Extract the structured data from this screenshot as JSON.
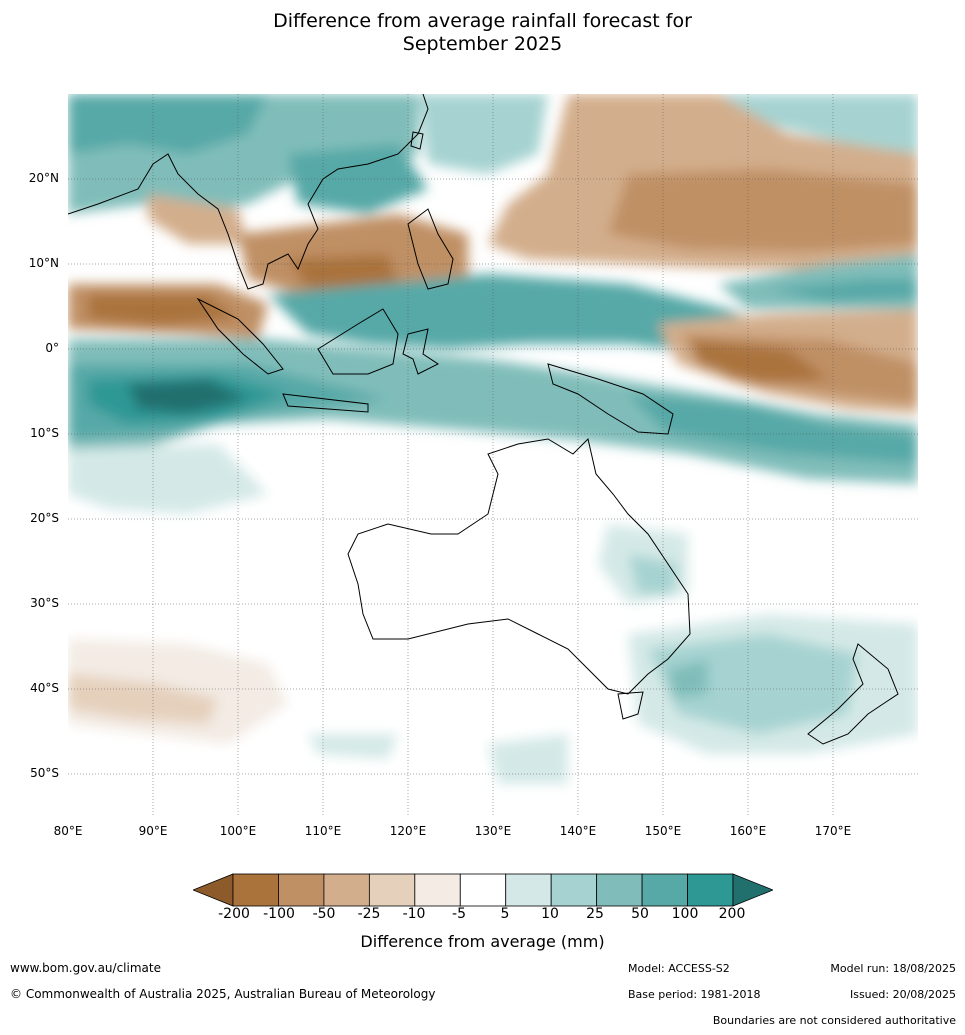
{
  "title_line1": "Difference from average rainfall forecast for",
  "title_line2": "September 2025",
  "lat_labels": [
    "20°N",
    "10°N",
    "0°",
    "10°S",
    "20°S",
    "30°S",
    "40°S",
    "50°S"
  ],
  "lon_labels": [
    "80°E",
    "90°E",
    "100°E",
    "110°E",
    "120°E",
    "130°E",
    "140°E",
    "150°E",
    "160°E",
    "170°E"
  ],
  "colorbar": {
    "ticks": [
      "-200",
      "-100",
      "-50",
      "-25",
      "-10",
      "-5",
      "5",
      "10",
      "25",
      "50",
      "100",
      "200"
    ],
    "colors": [
      "#8c5a2b",
      "#aa733c",
      "#c09065",
      "#d3ae8c",
      "#e5d0bc",
      "#f3ebe4",
      "#ffffff",
      "#d4e9e7",
      "#a6d3d1",
      "#80bdba",
      "#57a9a7",
      "#2e9895",
      "#22706e"
    ],
    "label": "Difference from average (mm)"
  },
  "footer": {
    "url": "www.bom.gov.au/climate",
    "copyright": "© Commonwealth of Australia 2025, Australian Bureau of Meteorology",
    "model": "Model: ACCESS-S2",
    "base_period": "Base period: 1981-2018",
    "model_run": "Model run: 18/08/2025",
    "issued": "Issued: 20/08/2025",
    "disclaimer": "Boundaries are not considered authoritative"
  }
}
